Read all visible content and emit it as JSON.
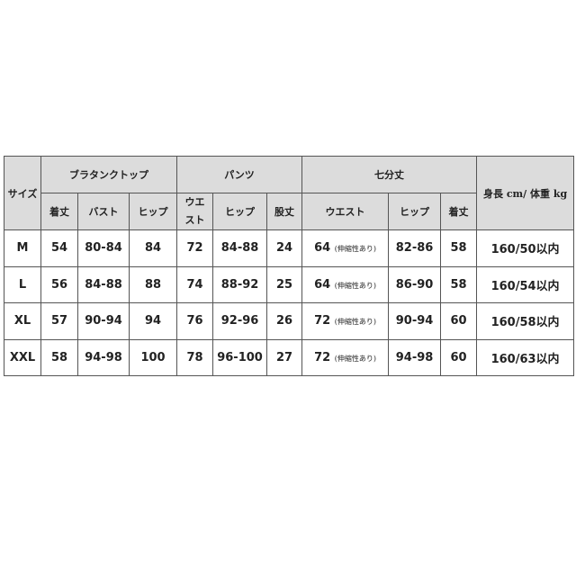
{
  "headers": {
    "size": "サイズ",
    "group_top": "ブラタンクトップ",
    "group_pants": "パンツ",
    "group_cropped": "七分丈",
    "height_weight": "身長 cm/ 体重 kg",
    "top_cols": [
      "着丈",
      "バスト",
      "ヒップ"
    ],
    "pants_cols": [
      "ウエスト",
      "ヒップ",
      "股丈"
    ],
    "cropped_cols": [
      "ウエスト",
      "ヒップ",
      "着丈"
    ]
  },
  "rows": [
    {
      "size": "M",
      "top": [
        "54",
        "80-84",
        "84"
      ],
      "pants": [
        "72",
        "84-88",
        "24"
      ],
      "crop_waist": "64",
      "crop_note": "(伸縮性あり)",
      "crop": [
        "82-86",
        "58"
      ],
      "hw": "160/50以内"
    },
    {
      "size": "L",
      "top": [
        "56",
        "84-88",
        "88"
      ],
      "pants": [
        "74",
        "88-92",
        "25"
      ],
      "crop_waist": "64",
      "crop_note": "(伸縮性あり)",
      "crop": [
        "86-90",
        "58"
      ],
      "hw": "160/54以内"
    },
    {
      "size": "XL",
      "top": [
        "57",
        "90-94",
        "94"
      ],
      "pants": [
        "76",
        "92-96",
        "26"
      ],
      "crop_waist": "72",
      "crop_note": "(伸縮性あり)",
      "crop": [
        "90-94",
        "60"
      ],
      "hw": "160/58以内"
    },
    {
      "size": "XXL",
      "top": [
        "58",
        "94-98",
        "100"
      ],
      "pants": [
        "78",
        "96-100",
        "27"
      ],
      "crop_waist": "72",
      "crop_note": "(伸縮性あり)",
      "crop": [
        "94-98",
        "60"
      ],
      "hw": "160/63以内"
    }
  ]
}
